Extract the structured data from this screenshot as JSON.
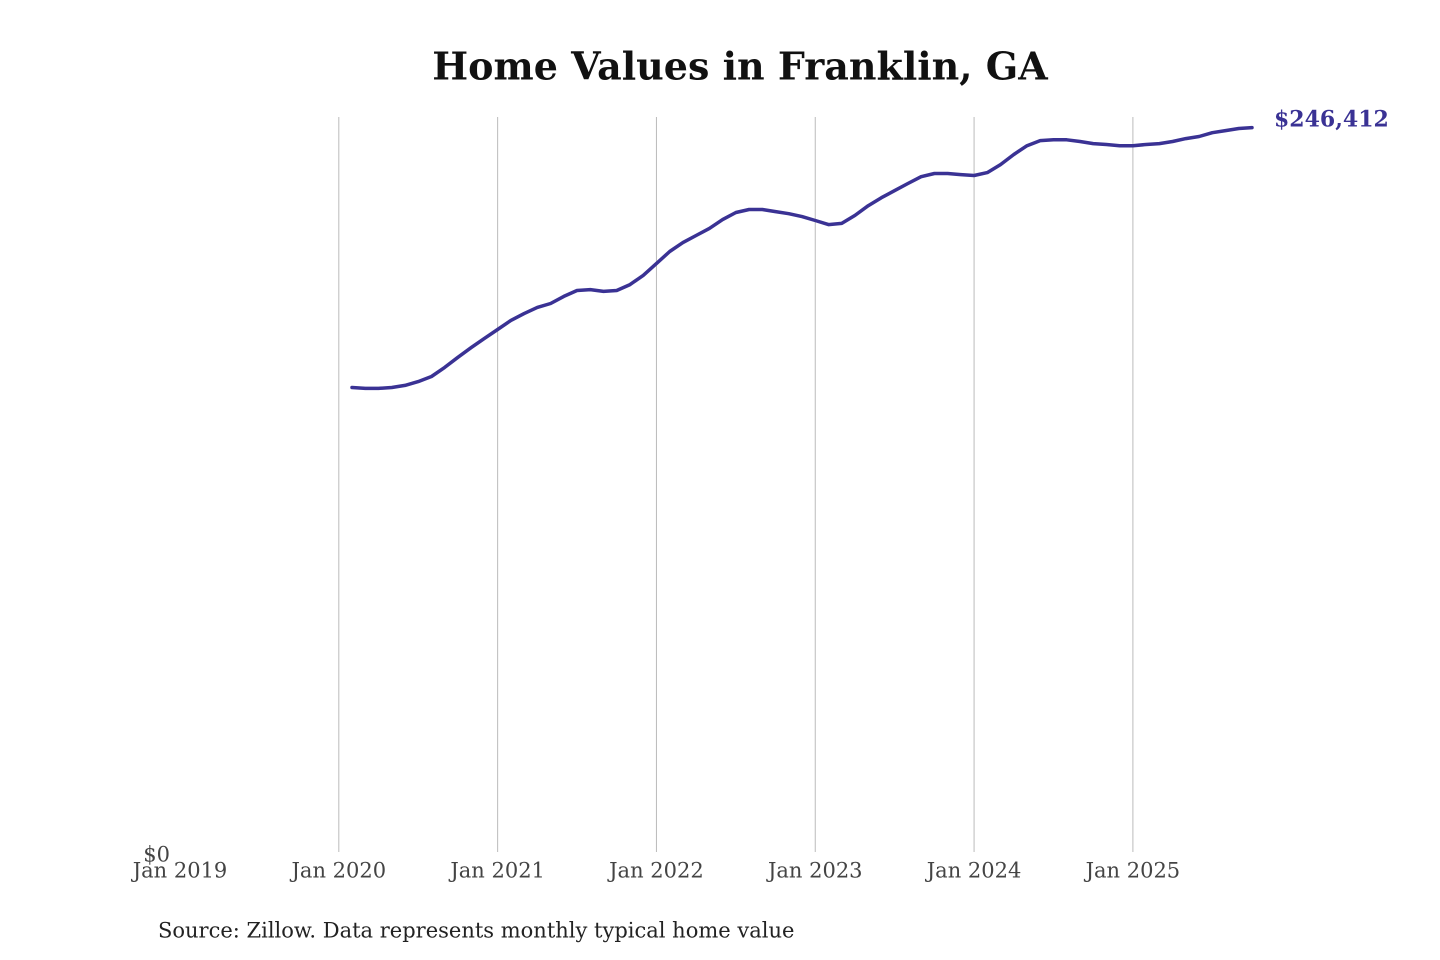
{
  "chart_data": {
    "type": "line",
    "title": "Home Values in Franklin, GA",
    "source": "Source: Zillow. Data represents monthly typical home value",
    "x": [
      "2020-02",
      "2020-03",
      "2020-04",
      "2020-05",
      "2020-06",
      "2020-07",
      "2020-08",
      "2020-09",
      "2020-10",
      "2020-11",
      "2020-12",
      "2021-01",
      "2021-02",
      "2021-03",
      "2021-04",
      "2021-05",
      "2021-06",
      "2021-07",
      "2021-08",
      "2021-09",
      "2021-10",
      "2021-11",
      "2021-12",
      "2022-01",
      "2022-02",
      "2022-03",
      "2022-04",
      "2022-05",
      "2022-06",
      "2022-07",
      "2022-08",
      "2022-09",
      "2022-10",
      "2022-11",
      "2022-12",
      "2023-01",
      "2023-02",
      "2023-03",
      "2023-04",
      "2023-05",
      "2023-06",
      "2023-07",
      "2023-08",
      "2023-09",
      "2023-10",
      "2023-11",
      "2023-12",
      "2024-01",
      "2024-02",
      "2024-03",
      "2024-04",
      "2024-05",
      "2024-06",
      "2024-07",
      "2024-08",
      "2024-09",
      "2024-10",
      "2024-11",
      "2024-12",
      "2025-01",
      "2025-02",
      "2025-03",
      "2025-04",
      "2025-05",
      "2025-06",
      "2025-07",
      "2025-08",
      "2025-09",
      "2025-10"
    ],
    "series": [
      {
        "name": "Typical home value",
        "color": "#3a3294",
        "values": [
          158500,
          158200,
          158200,
          158500,
          159200,
          160500,
          162200,
          165300,
          168700,
          172000,
          175100,
          178100,
          181200,
          183500,
          185600,
          186900,
          189300,
          191300,
          191600,
          191000,
          191300,
          193300,
          196400,
          200400,
          204500,
          207500,
          209900,
          212300,
          215300,
          217700,
          218700,
          218700,
          218000,
          217300,
          216300,
          215000,
          213600,
          214000,
          216700,
          220000,
          222700,
          225100,
          227500,
          229800,
          230900,
          230900,
          230500,
          230200,
          231200,
          233900,
          237300,
          240300,
          242000,
          242300,
          242300,
          241700,
          241000,
          240700,
          240300,
          240300,
          240700,
          241000,
          241700,
          242700,
          243400,
          244700,
          245400,
          246100,
          246412
        ],
        "value_labels": [
          null,
          null,
          null,
          null,
          null,
          null,
          null,
          null,
          null,
          null,
          null,
          null,
          null,
          null,
          null,
          null,
          null,
          null,
          null,
          null,
          null,
          null,
          null,
          null,
          null,
          null,
          null,
          null,
          null,
          null,
          null,
          null,
          null,
          null,
          null,
          null,
          null,
          null,
          null,
          null,
          null,
          null,
          null,
          null,
          null,
          null,
          null,
          null,
          null,
          null,
          null,
          null,
          null,
          null,
          null,
          null,
          null,
          null,
          null,
          null,
          null,
          null,
          null,
          null,
          null,
          null,
          null,
          null,
          "$246,412"
        ]
      }
    ],
    "xlim": [
      "2019-01",
      "2025-10"
    ],
    "xticks": [
      {
        "value": "2019-01",
        "label": "Jan 2019"
      },
      {
        "value": "2020-01",
        "label": "Jan 2020"
      },
      {
        "value": "2021-01",
        "label": "Jan 2021"
      },
      {
        "value": "2022-01",
        "label": "Jan 2022"
      },
      {
        "value": "2023-01",
        "label": "Jan 2023"
      },
      {
        "value": "2024-01",
        "label": "Jan 2024"
      },
      {
        "value": "2025-01",
        "label": "Jan 2025"
      }
    ],
    "ylim": [
      0,
      250000
    ],
    "yticks": [
      {
        "value": 0,
        "label": "$0"
      }
    ],
    "grid": true
  }
}
